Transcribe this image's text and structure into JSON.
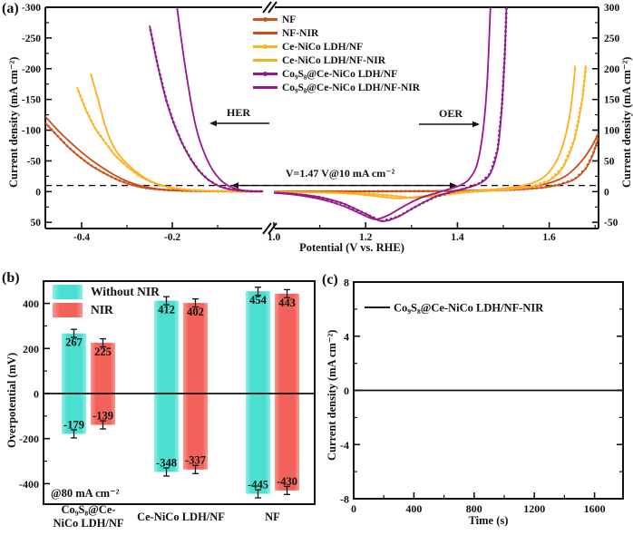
{
  "chart_data": [
    {
      "id": "a",
      "type": "line",
      "panel_label": "(a)",
      "xlabel": "Potential (V vs. RHE)",
      "ylabel_left": "Current density (mA cm⁻²)",
      "ylabel_right": "Current density (mA cm⁻²)",
      "axis_break_between": [
        0.0,
        1.0
      ],
      "ylim_left": [
        -300,
        60
      ],
      "yticks_left": [
        -300,
        -250,
        -200,
        -150,
        -100,
        -50,
        0,
        50
      ],
      "yticks_right": [
        300,
        250,
        200,
        150,
        100,
        50,
        0,
        -50
      ],
      "xticks_left_segment": [
        -0.4,
        -0.2
      ],
      "xticks_minor_left": [
        -0.3,
        -0.1
      ],
      "xticks_right_segment": [
        1.0,
        1.2,
        1.4,
        1.6
      ],
      "xticks_minor_right": [
        1.1,
        1.3,
        1.5,
        1.7
      ],
      "annotations": {
        "her": "HER",
        "oer": "OER",
        "cell_voltage": "V=1.47 V@10 mA cm⁻²",
        "dashed_line_current": 10
      },
      "legend_position": "top-center-right",
      "series": [
        {
          "name": "NF",
          "color": "#CC5520",
          "marker": true,
          "her": [
            [
              -0.48,
              -112
            ],
            [
              -0.455,
              -92
            ],
            [
              -0.43,
              -73
            ],
            [
              -0.405,
              -57
            ],
            [
              -0.38,
              -43
            ],
            [
              -0.35,
              -30
            ],
            [
              -0.32,
              -19
            ],
            [
              -0.29,
              -11
            ],
            [
              -0.26,
              -6
            ],
            [
              -0.22,
              -3
            ],
            [
              -0.17,
              -1.3
            ],
            [
              -0.11,
              -0.6
            ],
            [
              -0.05,
              -0.3
            ],
            [
              0,
              -0.3
            ]
          ],
          "oer": [
            [
              1.0,
              0.3
            ],
            [
              1.2,
              0.5
            ],
            [
              1.35,
              0.8
            ],
            [
              1.45,
              1.5
            ],
            [
              1.52,
              3
            ],
            [
              1.58,
              6
            ],
            [
              1.62,
              11
            ],
            [
              1.655,
              20
            ],
            [
              1.68,
              38
            ],
            [
              1.695,
              60
            ],
            [
              1.707,
              88
            ]
          ]
        },
        {
          "name": "NF-NIR",
          "color": "#CC4A16",
          "marker": false,
          "her": [
            [
              -0.48,
              -122
            ],
            [
              -0.45,
              -98
            ],
            [
              -0.42,
              -77
            ],
            [
              -0.39,
              -58
            ],
            [
              -0.36,
              -42
            ],
            [
              -0.33,
              -28
            ],
            [
              -0.3,
              -17
            ],
            [
              -0.27,
              -9.5
            ],
            [
              -0.24,
              -5
            ],
            [
              -0.2,
              -2.2
            ],
            [
              -0.15,
              -1
            ],
            [
              -0.09,
              -0.4
            ],
            [
              0,
              -0.2
            ]
          ],
          "oer": [
            [
              1.0,
              0.3
            ],
            [
              1.2,
              0.6
            ],
            [
              1.35,
              1
            ],
            [
              1.44,
              2
            ],
            [
              1.5,
              4
            ],
            [
              1.56,
              8
            ],
            [
              1.6,
              14
            ],
            [
              1.635,
              25
            ],
            [
              1.665,
              45
            ],
            [
              1.69,
              70
            ],
            [
              1.707,
              95
            ]
          ]
        },
        {
          "name": "Ce-NiCo LDH/NF",
          "color": "#FFB324",
          "marker": true,
          "her": [
            [
              -0.41,
              -170
            ],
            [
              -0.39,
              -132
            ],
            [
              -0.37,
              -103
            ],
            [
              -0.348,
              -80
            ],
            [
              -0.325,
              -58
            ],
            [
              -0.3,
              -41
            ],
            [
              -0.275,
              -27
            ],
            [
              -0.25,
              -17
            ],
            [
              -0.225,
              -10
            ],
            [
              -0.2,
              -6
            ],
            [
              -0.165,
              -2.8
            ],
            [
              -0.12,
              -1.1
            ],
            [
              -0.06,
              -0.4
            ],
            [
              0,
              -0.3
            ]
          ],
          "oer": [
            [
              1.0,
              -0.5
            ],
            [
              1.1,
              -1
            ],
            [
              1.18,
              -2.5
            ],
            [
              1.25,
              -6
            ],
            [
              1.3,
              -10
            ],
            [
              1.35,
              -7
            ],
            [
              1.42,
              -1
            ],
            [
              1.5,
              3
            ],
            [
              1.56,
              8
            ],
            [
              1.6,
              18
            ],
            [
              1.63,
              40
            ],
            [
              1.655,
              85
            ],
            [
              1.672,
              150
            ],
            [
              1.68,
              205
            ]
          ]
        },
        {
          "name": "Ce-NiCo LDH/NF-NIR",
          "color": "#FFAE1A",
          "marker": false,
          "her": [
            [
              -0.38,
              -192
            ],
            [
              -0.363,
              -148
            ],
            [
              -0.35,
              -112
            ],
            [
              -0.337,
              -85
            ],
            [
              -0.32,
              -62
            ],
            [
              -0.295,
              -42
            ],
            [
              -0.27,
              -27
            ],
            [
              -0.245,
              -16
            ],
            [
              -0.215,
              -8.5
            ],
            [
              -0.185,
              -4
            ],
            [
              -0.145,
              -1.6
            ],
            [
              -0.09,
              -0.5
            ],
            [
              0,
              -0.2
            ]
          ],
          "oer": [
            [
              1.0,
              -0.5
            ],
            [
              1.1,
              -1.5
            ],
            [
              1.17,
              -3.5
            ],
            [
              1.23,
              -8
            ],
            [
              1.275,
              -11
            ],
            [
              1.33,
              -7
            ],
            [
              1.4,
              -1
            ],
            [
              1.47,
              3
            ],
            [
              1.53,
              8
            ],
            [
              1.57,
              16
            ],
            [
              1.6,
              32
            ],
            [
              1.625,
              65
            ],
            [
              1.645,
              125
            ],
            [
              1.657,
              205
            ]
          ]
        },
        {
          "name": "Co₉S₈@Ce-NiCo LDH/NF",
          "color": "#8F1C85",
          "marker": true,
          "her": [
            [
              -0.25,
              -270
            ],
            [
              -0.232,
              -205
            ],
            [
              -0.213,
              -148
            ],
            [
              -0.196,
              -110
            ],
            [
              -0.179,
              -80
            ],
            [
              -0.16,
              -54
            ],
            [
              -0.14,
              -33
            ],
            [
              -0.12,
              -19
            ],
            [
              -0.1,
              -10
            ],
            [
              -0.08,
              -5
            ],
            [
              -0.055,
              -2
            ],
            [
              -0.03,
              -0.8
            ],
            [
              0,
              -0.4
            ]
          ],
          "oer": [
            [
              1.0,
              -1.5
            ],
            [
              1.05,
              -4
            ],
            [
              1.1,
              -9
            ],
            [
              1.15,
              -19
            ],
            [
              1.2,
              -36
            ],
            [
              1.235,
              -48
            ],
            [
              1.27,
              -41
            ],
            [
              1.31,
              -24
            ],
            [
              1.35,
              -9
            ],
            [
              1.385,
              -1
            ],
            [
              1.42,
              6
            ],
            [
              1.45,
              14
            ],
            [
              1.472,
              30
            ],
            [
              1.488,
              70
            ],
            [
              1.497,
              140
            ],
            [
              1.503,
              220
            ],
            [
              1.507,
              302
            ]
          ]
        },
        {
          "name": "Co₉S₈@Ce-NiCo LDH/NF-NIR",
          "color": "#99168F",
          "marker": false,
          "her": [
            [
              -0.19,
              -302
            ],
            [
              -0.175,
              -220
            ],
            [
              -0.161,
              -155
            ],
            [
              -0.15,
              -112
            ],
            [
              -0.139,
              -82
            ],
            [
              -0.125,
              -55
            ],
            [
              -0.11,
              -34
            ],
            [
              -0.095,
              -20
            ],
            [
              -0.08,
              -11
            ],
            [
              -0.063,
              -5.5
            ],
            [
              -0.045,
              -2.2
            ],
            [
              -0.025,
              -0.8
            ],
            [
              0,
              -0.3
            ]
          ],
          "oer": [
            [
              1.0,
              -2
            ],
            [
              1.05,
              -5.5
            ],
            [
              1.1,
              -12
            ],
            [
              1.15,
              -23
            ],
            [
              1.195,
              -38
            ],
            [
              1.222,
              -45
            ],
            [
              1.25,
              -38
            ],
            [
              1.285,
              -23
            ],
            [
              1.32,
              -10
            ],
            [
              1.355,
              -2
            ],
            [
              1.385,
              5
            ],
            [
              1.405,
              10
            ],
            [
              1.425,
              20
            ],
            [
              1.443,
              45
            ],
            [
              1.456,
              100
            ],
            [
              1.465,
              180
            ],
            [
              1.472,
              302
            ]
          ]
        }
      ]
    },
    {
      "id": "b",
      "type": "bar",
      "panel_label": "(b)",
      "ylabel": "Overpotential (mV)",
      "ylim": [
        -490,
        500
      ],
      "yticks": [
        -400,
        -200,
        0,
        200,
        400
      ],
      "yticks_minor": [
        -300,
        -100,
        100,
        300
      ],
      "annotation": "@80 mA cm⁻²",
      "categories": [
        [
          "Co₉S₈@Ce-",
          "NiCo LDH/NF"
        ],
        [
          "Ce-NiCo LDH/NF"
        ],
        [
          "NF"
        ]
      ],
      "series": [
        {
          "name": "Without NIR",
          "color": "#4ADFD0",
          "color_light": "#8FEFE4",
          "oer_mv": [
            267,
            412,
            454
          ],
          "her_mv": [
            -179,
            -348,
            -445
          ],
          "err_mv": 18
        },
        {
          "name": "NIR",
          "color": "#F2625A",
          "color_light": "#F89890",
          "oer_mv": [
            225,
            402,
            443
          ],
          "her_mv": [
            -139,
            -337,
            -430
          ],
          "err_mv": 18
        }
      ]
    },
    {
      "id": "c",
      "type": "line",
      "panel_label": "(c)",
      "xlabel": "Time (s)",
      "ylabel": "Current density (mA cm⁻²)",
      "xlim": [
        0,
        1789
      ],
      "xticks": [
        0,
        400,
        800,
        1200,
        1600
      ],
      "xticks_minor": [
        200,
        600,
        1000,
        1400
      ],
      "ylim": [
        -8,
        8
      ],
      "yticks": [
        -8,
        -4,
        0,
        4,
        8
      ],
      "yticks_minor": [
        -6,
        -2,
        2,
        6
      ],
      "series": [
        {
          "name": "Co₉S₈@Ce-NiCo LDH/NF-NIR",
          "color": "#111111",
          "y_constant": 0
        }
      ]
    }
  ]
}
